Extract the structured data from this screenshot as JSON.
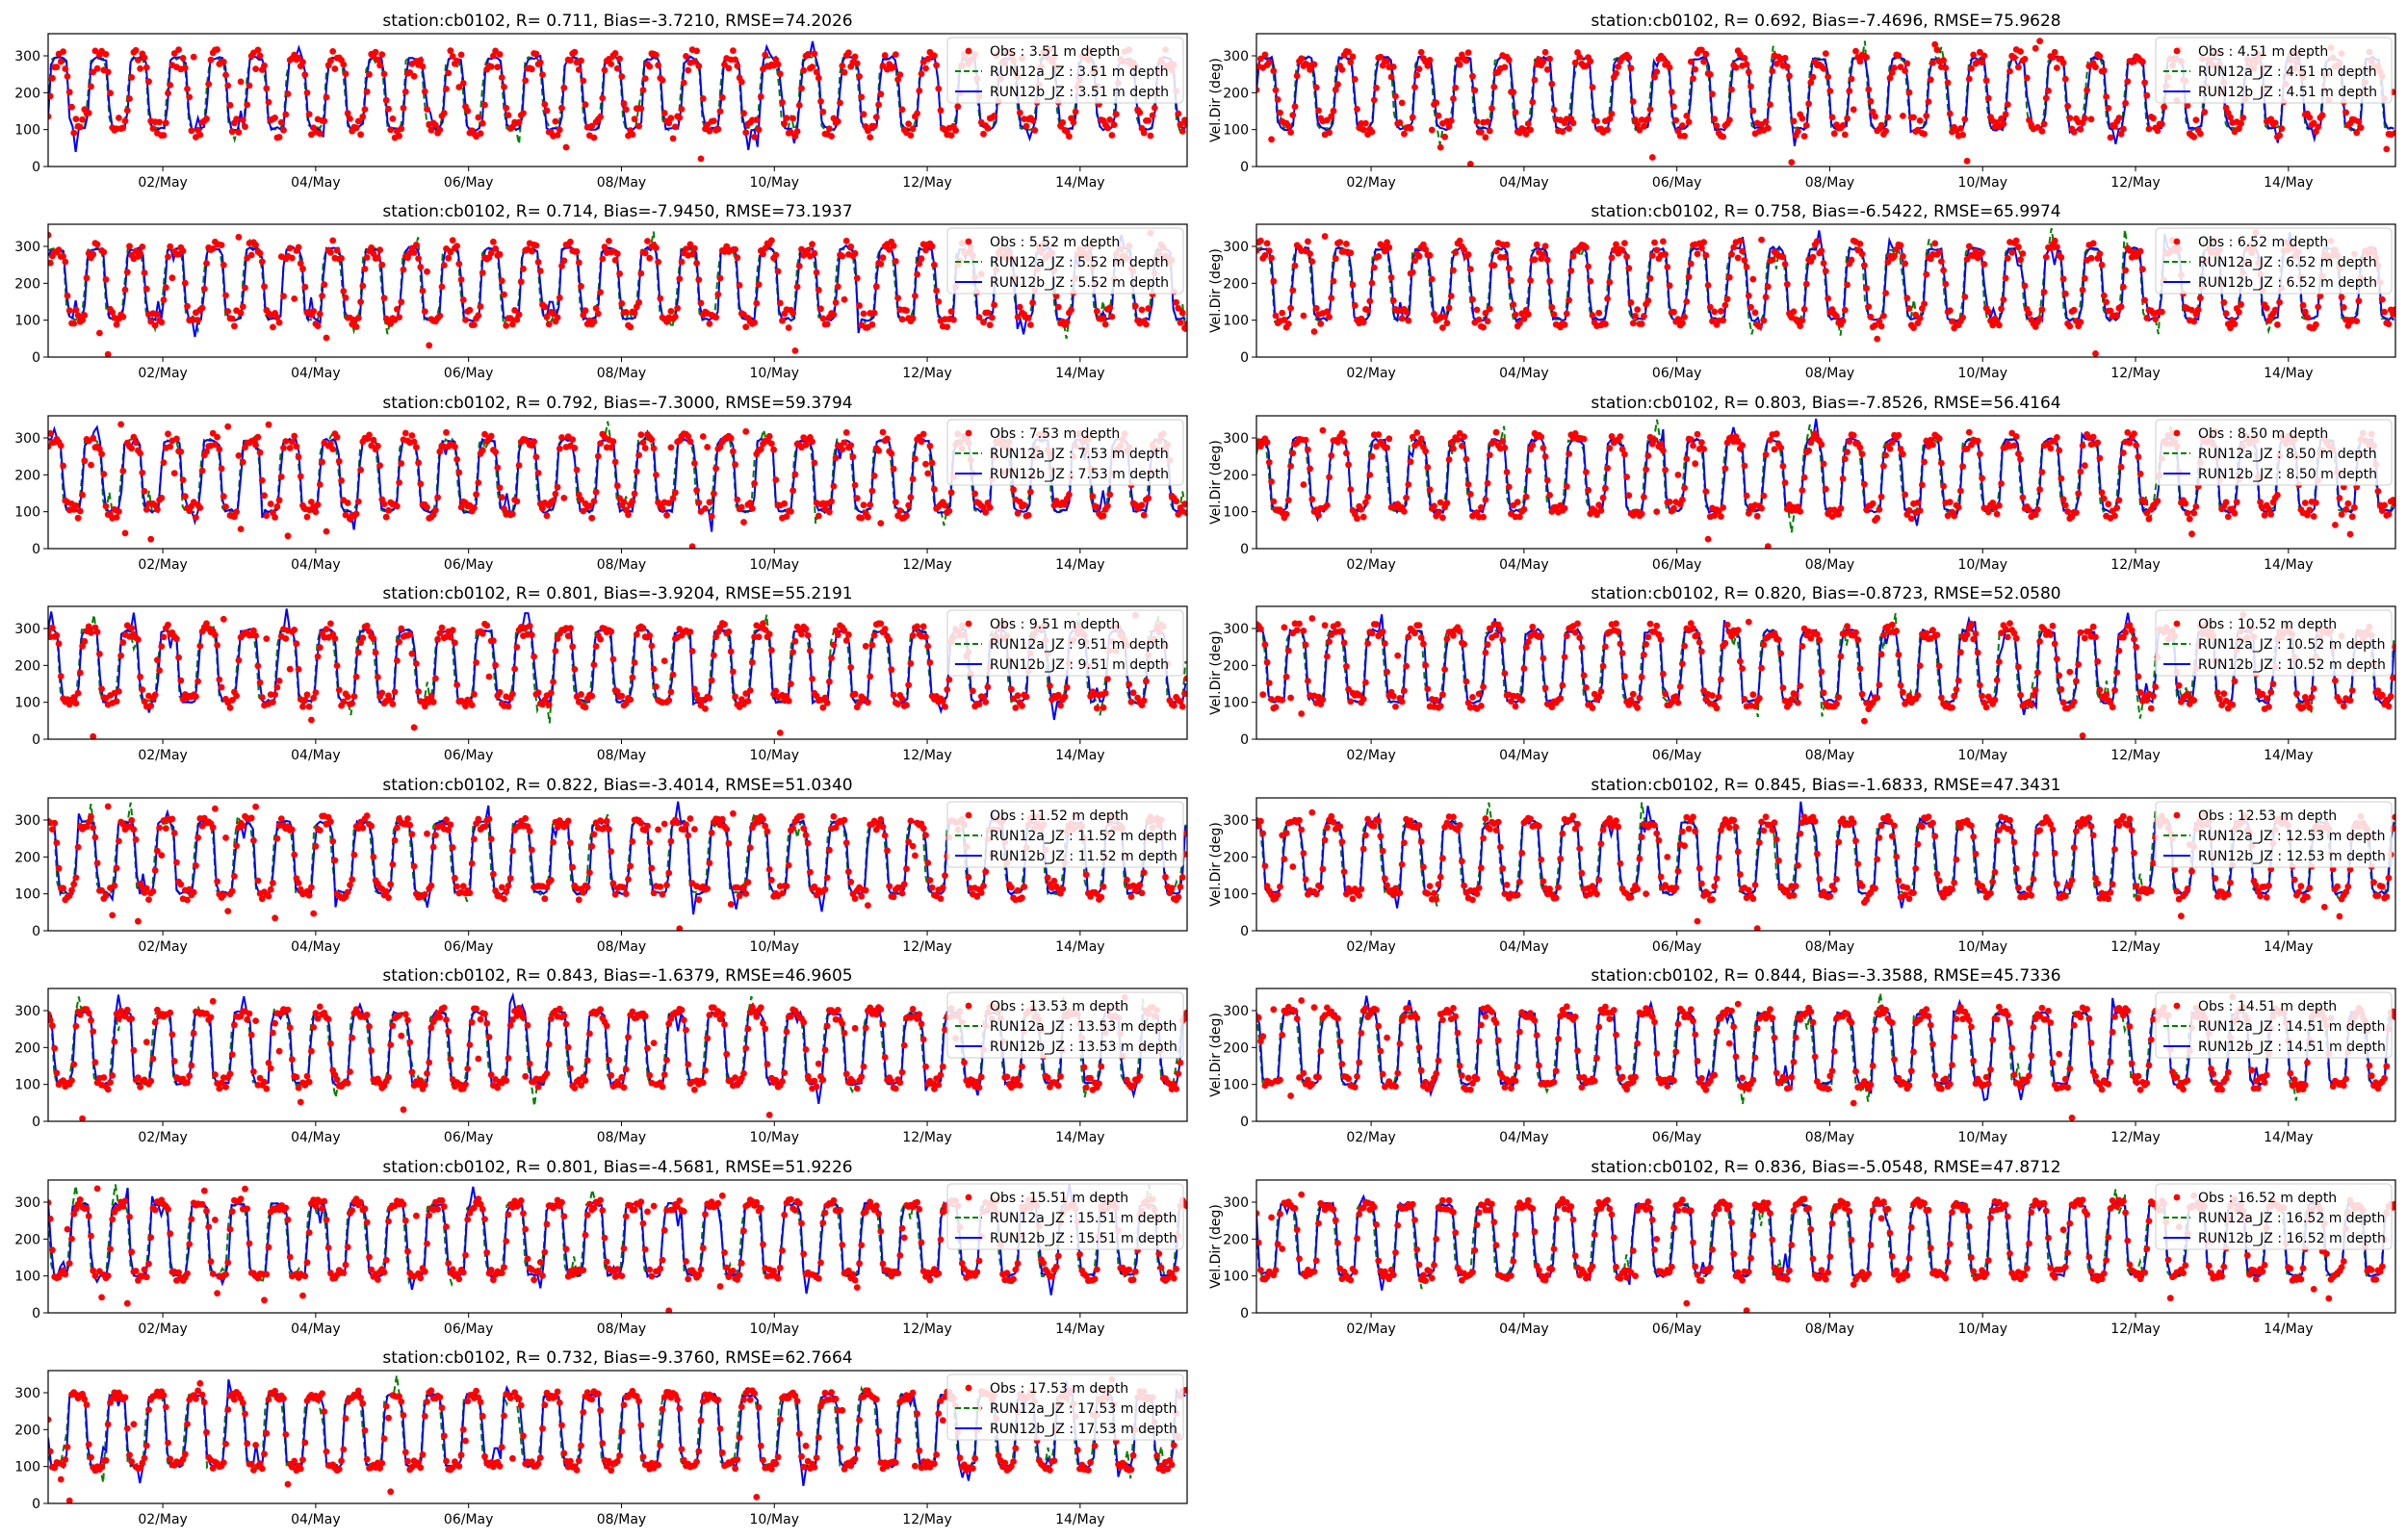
{
  "figure": {
    "tick_labels_x": [
      "02/May",
      "04/May",
      "06/May",
      "08/May",
      "10/May",
      "12/May",
      "14/May"
    ],
    "ylabel": "Vel.Dir (deg)",
    "colors": {
      "obs": "#ff0000",
      "run12a": "#008000",
      "run12b": "#0000ff"
    }
  },
  "chart_data": [
    {
      "type": "line",
      "title": "station:cb0102, R= 0.711, Bias=-3.7210, RMSE=74.2026",
      "ylabel": "",
      "depth": "3.51",
      "legend": [
        "Obs : 3.51 m depth",
        "RUN12a_JZ : 3.51 m depth",
        "RUN12b_JZ : 3.51 m depth"
      ],
      "yticks": [
        0,
        100,
        200,
        300
      ],
      "ylim": [
        0,
        360
      ],
      "stats": {
        "R": 0.711,
        "Bias": -3.721,
        "RMSE": 74.2026
      }
    },
    {
      "type": "line",
      "title": "station:cb0102, R= 0.692, Bias=-7.4696, RMSE=75.9628",
      "ylabel": "Vel.Dir (deg)",
      "depth": "4.51",
      "legend": [
        "Obs : 4.51 m depth",
        "RUN12a_JZ : 4.51 m depth",
        "RUN12b_JZ : 4.51 m depth"
      ],
      "yticks": [
        0,
        100,
        200,
        300
      ],
      "ylim": [
        0,
        360
      ],
      "stats": {
        "R": 0.692,
        "Bias": -7.4696,
        "RMSE": 75.9628
      }
    },
    {
      "type": "line",
      "title": "station:cb0102, R= 0.714, Bias=-7.9450, RMSE=73.1937",
      "ylabel": "",
      "depth": "5.52",
      "legend": [
        "Obs : 5.52 m depth",
        "RUN12a_JZ : 5.52 m depth",
        "RUN12b_JZ : 5.52 m depth"
      ],
      "yticks": [
        0,
        100,
        200,
        300
      ],
      "ylim": [
        0,
        360
      ],
      "stats": {
        "R": 0.714,
        "Bias": -7.945,
        "RMSE": 73.1937
      }
    },
    {
      "type": "line",
      "title": "station:cb0102, R= 0.758, Bias=-6.5422, RMSE=65.9974",
      "ylabel": "Vel.Dir (deg)",
      "depth": "6.52",
      "legend": [
        "Obs : 6.52 m depth",
        "RUN12a_JZ : 6.52 m depth",
        "RUN12b_JZ : 6.52 m depth"
      ],
      "yticks": [
        0,
        100,
        200,
        300
      ],
      "ylim": [
        0,
        360
      ],
      "stats": {
        "R": 0.758,
        "Bias": -6.5422,
        "RMSE": 65.9974
      }
    },
    {
      "type": "line",
      "title": "station:cb0102, R= 0.792, Bias=-7.3000, RMSE=59.3794",
      "ylabel": "",
      "depth": "7.53",
      "legend": [
        "Obs : 7.53 m depth",
        "RUN12a_JZ : 7.53 m depth",
        "RUN12b_JZ : 7.53 m depth"
      ],
      "yticks": [
        0,
        100,
        200,
        300
      ],
      "ylim": [
        0,
        360
      ],
      "stats": {
        "R": 0.792,
        "Bias": -7.3,
        "RMSE": 59.3794
      }
    },
    {
      "type": "line",
      "title": "station:cb0102, R= 0.803, Bias=-7.8526, RMSE=56.4164",
      "ylabel": "Vel.Dir (deg)",
      "depth": "8.50",
      "legend": [
        "Obs : 8.50 m depth",
        "RUN12a_JZ : 8.50 m depth",
        "RUN12b_JZ : 8.50 m depth"
      ],
      "yticks": [
        0,
        100,
        200,
        300
      ],
      "ylim": [
        0,
        360
      ],
      "stats": {
        "R": 0.803,
        "Bias": -7.8526,
        "RMSE": 56.4164
      }
    },
    {
      "type": "line",
      "title": "station:cb0102, R= 0.801, Bias=-3.9204, RMSE=55.2191",
      "ylabel": "",
      "depth": "9.51",
      "legend": [
        "Obs : 9.51 m depth",
        "RUN12a_JZ : 9.51 m depth",
        "RUN12b_JZ : 9.51 m depth"
      ],
      "yticks": [
        0,
        100,
        200,
        300
      ],
      "ylim": [
        0,
        360
      ],
      "stats": {
        "R": 0.801,
        "Bias": -3.9204,
        "RMSE": 55.2191
      }
    },
    {
      "type": "line",
      "title": "station:cb0102, R= 0.820, Bias=-0.8723, RMSE=52.0580",
      "ylabel": "Vel.Dir (deg)",
      "depth": "10.52",
      "legend": [
        "Obs : 10.52 m depth",
        "RUN12a_JZ : 10.52 m depth",
        "RUN12b_JZ : 10.52 m depth"
      ],
      "yticks": [
        0,
        100,
        200,
        300
      ],
      "ylim": [
        0,
        360
      ],
      "stats": {
        "R": 0.82,
        "Bias": -0.8723,
        "RMSE": 52.058
      }
    },
    {
      "type": "line",
      "title": "station:cb0102, R= 0.822, Bias=-3.4014, RMSE=51.0340",
      "ylabel": "",
      "depth": "11.52",
      "legend": [
        "Obs : 11.52 m depth",
        "RUN12a_JZ : 11.52 m depth",
        "RUN12b_JZ : 11.52 m depth"
      ],
      "yticks": [
        0,
        100,
        200,
        300
      ],
      "ylim": [
        0,
        360
      ],
      "stats": {
        "R": 0.822,
        "Bias": -3.4014,
        "RMSE": 51.034
      }
    },
    {
      "type": "line",
      "title": "station:cb0102, R= 0.845, Bias=-1.6833, RMSE=47.3431",
      "ylabel": "Vel.Dir (deg)",
      "depth": "12.53",
      "legend": [
        "Obs : 12.53 m depth",
        "RUN12a_JZ : 12.53 m depth",
        "RUN12b_JZ : 12.53 m depth"
      ],
      "yticks": [
        0,
        100,
        200,
        300
      ],
      "ylim": [
        0,
        360
      ],
      "stats": {
        "R": 0.845,
        "Bias": -1.6833,
        "RMSE": 47.3431
      }
    },
    {
      "type": "line",
      "title": "station:cb0102, R= 0.843, Bias=-1.6379, RMSE=46.9605",
      "ylabel": "",
      "depth": "13.53",
      "legend": [
        "Obs : 13.53 m depth",
        "RUN12a_JZ : 13.53 m depth",
        "RUN12b_JZ : 13.53 m depth"
      ],
      "yticks": [
        0,
        100,
        200,
        300
      ],
      "ylim": [
        0,
        360
      ],
      "stats": {
        "R": 0.843,
        "Bias": -1.6379,
        "RMSE": 46.9605
      }
    },
    {
      "type": "line",
      "title": "station:cb0102, R= 0.844, Bias=-3.3588, RMSE=45.7336",
      "ylabel": "Vel.Dir (deg)",
      "depth": "14.51",
      "legend": [
        "Obs : 14.51 m depth",
        "RUN12a_JZ : 14.51 m depth",
        "RUN12b_JZ : 14.51 m depth"
      ],
      "yticks": [
        0,
        100,
        200,
        300
      ],
      "ylim": [
        0,
        360
      ],
      "stats": {
        "R": 0.844,
        "Bias": -3.3588,
        "RMSE": 45.7336
      }
    },
    {
      "type": "line",
      "title": "station:cb0102, R= 0.801, Bias=-4.5681, RMSE=51.9226",
      "ylabel": "",
      "depth": "15.51",
      "legend": [
        "Obs : 15.51 m depth",
        "RUN12a_JZ : 15.51 m depth",
        "RUN12b_JZ : 15.51 m depth"
      ],
      "yticks": [
        0,
        100,
        200,
        300
      ],
      "ylim": [
        0,
        360
      ],
      "stats": {
        "R": 0.801,
        "Bias": -4.5681,
        "RMSE": 51.9226
      }
    },
    {
      "type": "line",
      "title": "station:cb0102, R= 0.836, Bias=-5.0548, RMSE=47.8712",
      "ylabel": "Vel.Dir (deg)",
      "depth": "16.52",
      "legend": [
        "Obs : 16.52 m depth",
        "RUN12a_JZ : 16.52 m depth",
        "RUN12b_JZ : 16.52 m depth"
      ],
      "yticks": [
        0,
        100,
        200,
        300
      ],
      "ylim": [
        0,
        360
      ],
      "stats": {
        "R": 0.836,
        "Bias": -5.0548,
        "RMSE": 47.8712
      }
    },
    {
      "type": "line",
      "title": "station:cb0102, R= 0.732, Bias=-9.3760, RMSE=62.7664",
      "ylabel": "",
      "depth": "17.53",
      "legend": [
        "Obs : 17.53 m depth",
        "RUN12a_JZ : 17.53 m depth",
        "RUN12b_JZ : 17.53 m depth"
      ],
      "yticks": [
        0,
        100,
        200,
        300
      ],
      "ylim": [
        0,
        360
      ],
      "stats": {
        "R": 0.732,
        "Bias": -9.376,
        "RMSE": 62.7664
      }
    }
  ]
}
